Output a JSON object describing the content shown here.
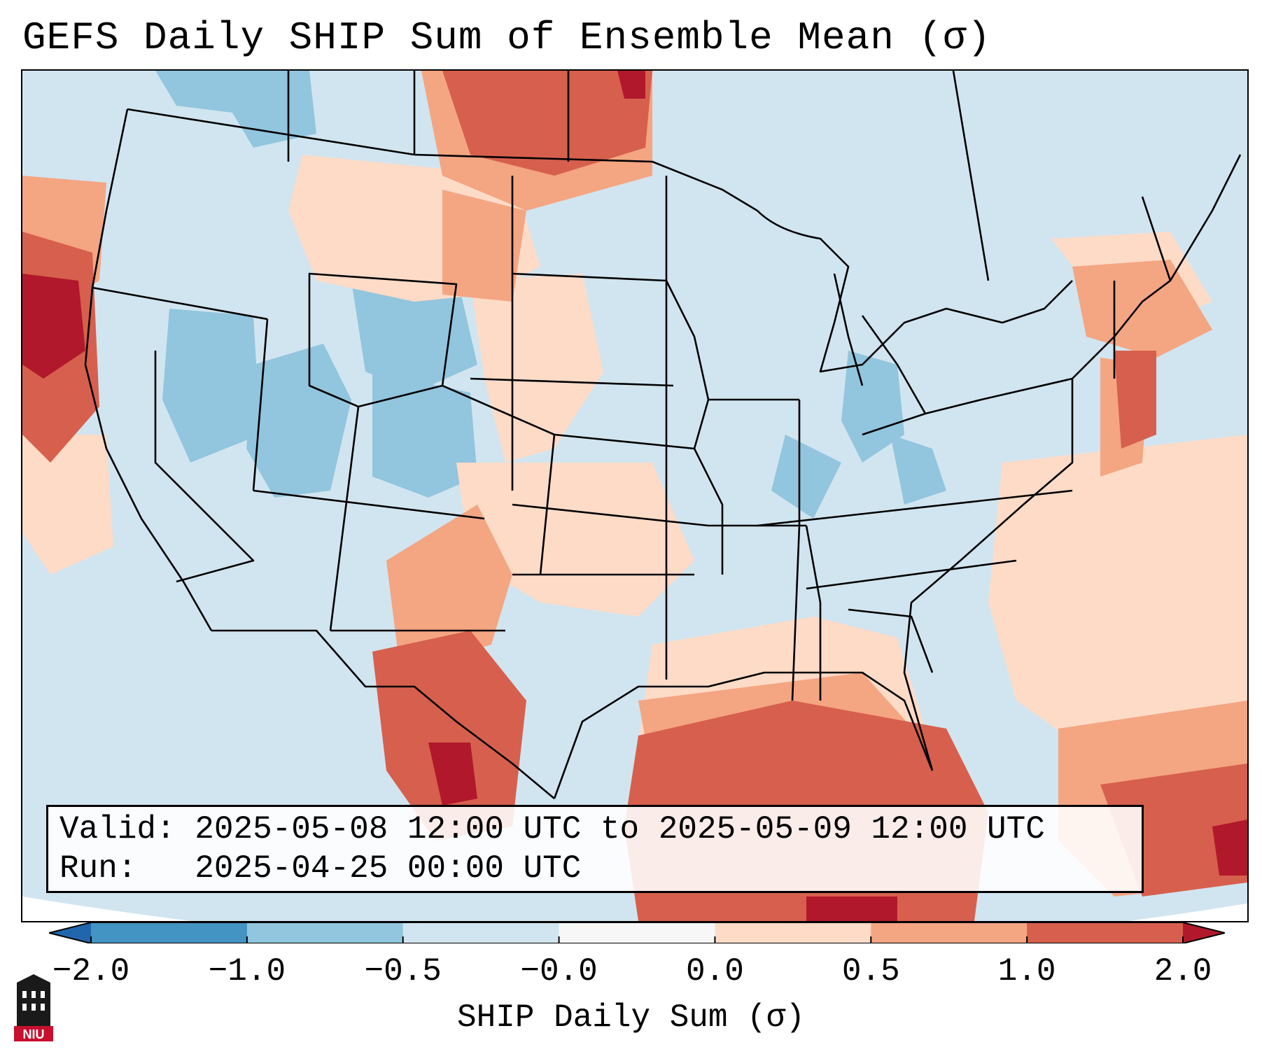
{
  "title": "GEFS Daily SHIP Sum of Ensemble Mean (σ)",
  "info": {
    "valid_label": "Valid:",
    "valid_value": "2025-05-08 12:00 UTC to 2025-05-09 12:00 UTC",
    "run_label": "Run:",
    "run_value": "2025-04-25 00:00 UTC"
  },
  "colorbar": {
    "label": "SHIP Daily Sum (σ)",
    "ticks": [
      "−2.0",
      "−1.0",
      "−0.5",
      "−0.0",
      "0.0",
      "0.5",
      "1.0",
      "2.0"
    ],
    "bins": [
      {
        "from": -2.0,
        "to": -1.0,
        "color": "#4393c3"
      },
      {
        "from": -1.0,
        "to": -0.5,
        "color": "#92c5de"
      },
      {
        "from": -0.5,
        "to": -0.0,
        "color": "#d1e5f0"
      },
      {
        "from": -0.0,
        "to": 0.0,
        "color": "#f7f7f7"
      },
      {
        "from": 0.0,
        "to": 0.5,
        "color": "#fddbc7"
      },
      {
        "from": 0.5,
        "to": 1.0,
        "color": "#f4a582"
      },
      {
        "from": 1.0,
        "to": 2.0,
        "color": "#d6604d"
      }
    ],
    "under_color": "#2166ac",
    "over_color": "#b2182b"
  },
  "logo": {
    "text": "NIU",
    "icon": "niu-building-logo"
  }
}
